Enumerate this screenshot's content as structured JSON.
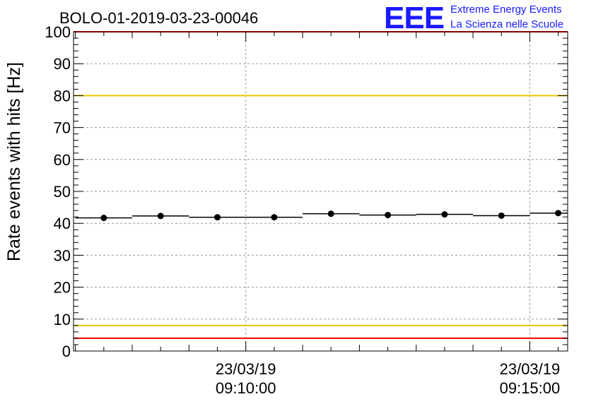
{
  "chart_data": {
    "type": "scatter",
    "title": "BOLO-01-2019-03-23-00046",
    "xlabel": "",
    "ylabel": "Rate events with hits [Hz]",
    "ylim": [
      0,
      100
    ],
    "y_ticks": [
      0,
      10,
      20,
      30,
      40,
      50,
      60,
      70,
      80,
      90,
      100
    ],
    "x_ticks": [
      {
        "date": "23/03/19",
        "time": "09:10:00"
      },
      {
        "date": "23/03/19",
        "time": "09:15:00"
      }
    ],
    "x_range_seconds": [
      "09:06:58",
      "09:15:40"
    ],
    "grid": true,
    "series": [
      {
        "marker": "circle",
        "color": "#000000",
        "points": [
          {
            "x": "09:07:30",
            "y": 41.7
          },
          {
            "x": "09:08:30",
            "y": 42.3
          },
          {
            "x": "09:09:30",
            "y": 41.9
          },
          {
            "x": "09:10:30",
            "y": 41.9
          },
          {
            "x": "09:11:30",
            "y": 43.0
          },
          {
            "x": "09:12:30",
            "y": 42.6
          },
          {
            "x": "09:13:30",
            "y": 42.8
          },
          {
            "x": "09:14:30",
            "y": 42.4
          },
          {
            "x": "09:15:30",
            "y": 43.2
          }
        ],
        "bin_width_seconds": 60
      }
    ],
    "reference_lines": [
      {
        "y": 100,
        "color": "#ff0000"
      },
      {
        "y": 80,
        "color": "#e6c800"
      },
      {
        "y": 8,
        "color": "#e6c800"
      },
      {
        "y": 4,
        "color": "#ff0000"
      }
    ]
  },
  "logo": {
    "mark": "EEE",
    "line1": "Extreme Energy Events",
    "line2": "La Scienza nelle Scuole",
    "color": "#1a1aff"
  }
}
